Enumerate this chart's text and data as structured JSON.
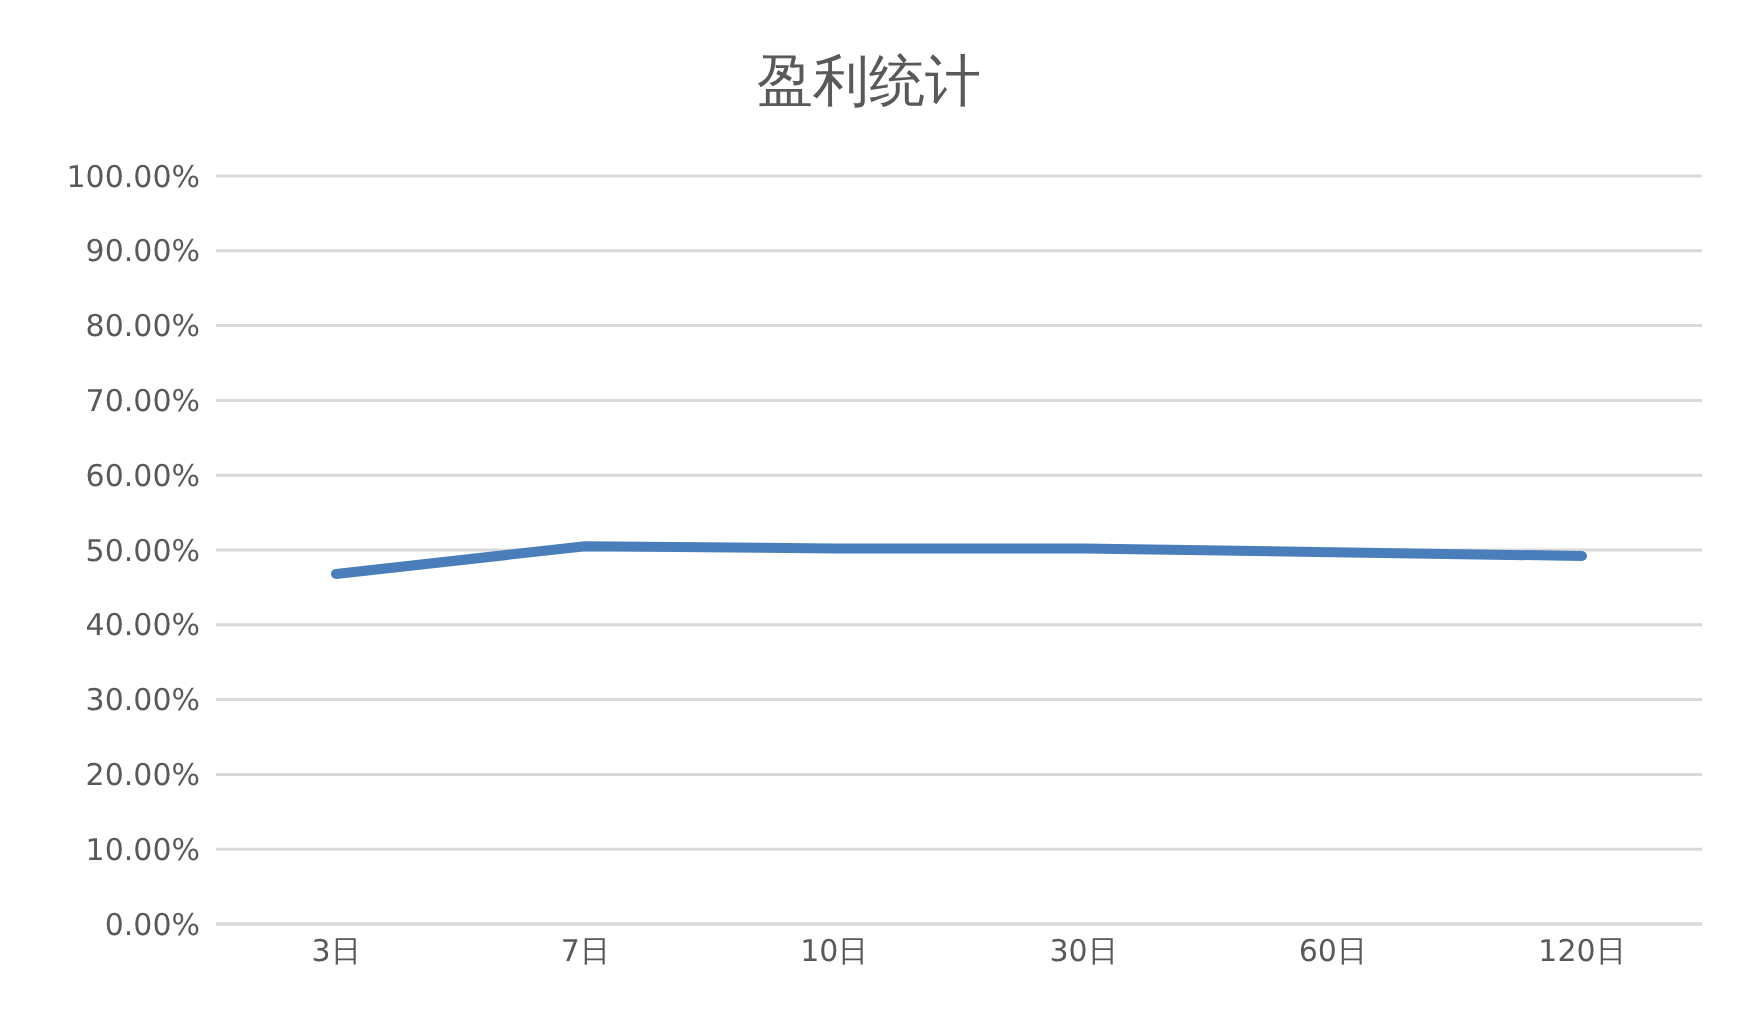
{
  "chart_data": {
    "type": "line",
    "title": "盈利统计",
    "categories": [
      "3日",
      "7日",
      "10日",
      "30日",
      "60日",
      "120日"
    ],
    "series": [
      {
        "color": "#4a7ebb",
        "values": [
          46.8,
          50.5,
          50.2,
          50.2,
          49.7,
          49.2
        ]
      }
    ],
    "ylim": [
      0,
      100
    ],
    "yticks": [
      {
        "value": 0,
        "label": "0.00%"
      },
      {
        "value": 10,
        "label": "10.00%"
      },
      {
        "value": 20,
        "label": "20.00%"
      },
      {
        "value": 30,
        "label": "30.00%"
      },
      {
        "value": 40,
        "label": "40.00%"
      },
      {
        "value": 50,
        "label": "50.00%"
      },
      {
        "value": 60,
        "label": "60.00%"
      },
      {
        "value": 70,
        "label": "70.00%"
      },
      {
        "value": 80,
        "label": "80.00%"
      },
      {
        "value": 90,
        "label": "90.00%"
      },
      {
        "value": 100,
        "label": "100.00%"
      }
    ],
    "grid": "y",
    "legend": false,
    "marker": "none",
    "line_style": "solid"
  }
}
